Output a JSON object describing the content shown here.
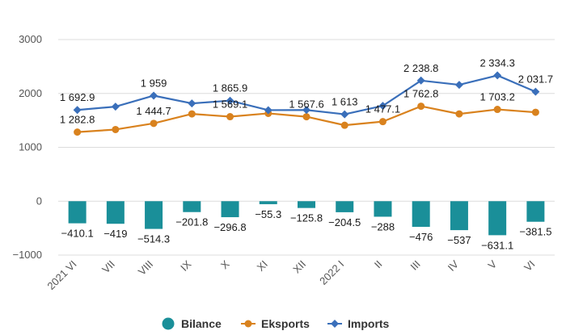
{
  "chart_data": {
    "type": "bar+line",
    "categories": [
      "2021 VI",
      "VII",
      "VIII",
      "IX",
      "X",
      "XI",
      "XII",
      "2022 I",
      "II",
      "III",
      "IV",
      "V",
      "VI"
    ],
    "series": [
      {
        "name": "Bilance",
        "type": "bar",
        "color": "#1a8f99",
        "values": [
          -410.1,
          -419,
          -514.3,
          -201.8,
          -296.8,
          -55.3,
          -125.8,
          -204.5,
          -288,
          -476,
          -537,
          -631.1,
          -381.5
        ],
        "labels": [
          "−410.1",
          "−419",
          "−514.3",
          "−201.8",
          "−296.8",
          "−55.3",
          "−125.8",
          "−204.5",
          "−288",
          "−476",
          "−537",
          "−631.1",
          "−381.5"
        ]
      },
      {
        "name": "Eksports",
        "type": "line",
        "marker": "circle",
        "color": "#d9821e",
        "values": [
          1282.8,
          1330,
          1444.7,
          1620,
          1569.1,
          1630,
          1567.6,
          1410,
          1477.1,
          1762.8,
          1620,
          1703.2,
          1650
        ],
        "labels": [
          "1 282.8",
          "",
          "1 444.7",
          "",
          "1 569.1",
          "",
          "1 567.6",
          "",
          "1 477.1",
          "1 762.8",
          "",
          "1 703.2",
          ""
        ]
      },
      {
        "name": "Imports",
        "type": "line",
        "marker": "diamond",
        "color": "#3a6fba",
        "values": [
          1692.9,
          1755,
          1959,
          1815,
          1865.9,
          1690,
          1693,
          1613,
          1770,
          2238.8,
          2160,
          2334.3,
          2031.7
        ],
        "labels": [
          "1 692.9",
          "",
          "1 959",
          "",
          "1 865.9",
          "",
          "",
          "1 613",
          "",
          "2 238.8",
          "",
          "2 334.3",
          "2 031.7"
        ]
      }
    ],
    "y_ticks": [
      3000,
      2000,
      1000,
      0,
      -1000
    ],
    "y_tick_labels": [
      "3000",
      "2000",
      "1000",
      "0",
      "−1000"
    ],
    "ylim": [
      -1000,
      3000
    ],
    "grid": "horizontal",
    "legend_position": "bottom",
    "title": "",
    "xlabel": "",
    "ylabel": ""
  }
}
